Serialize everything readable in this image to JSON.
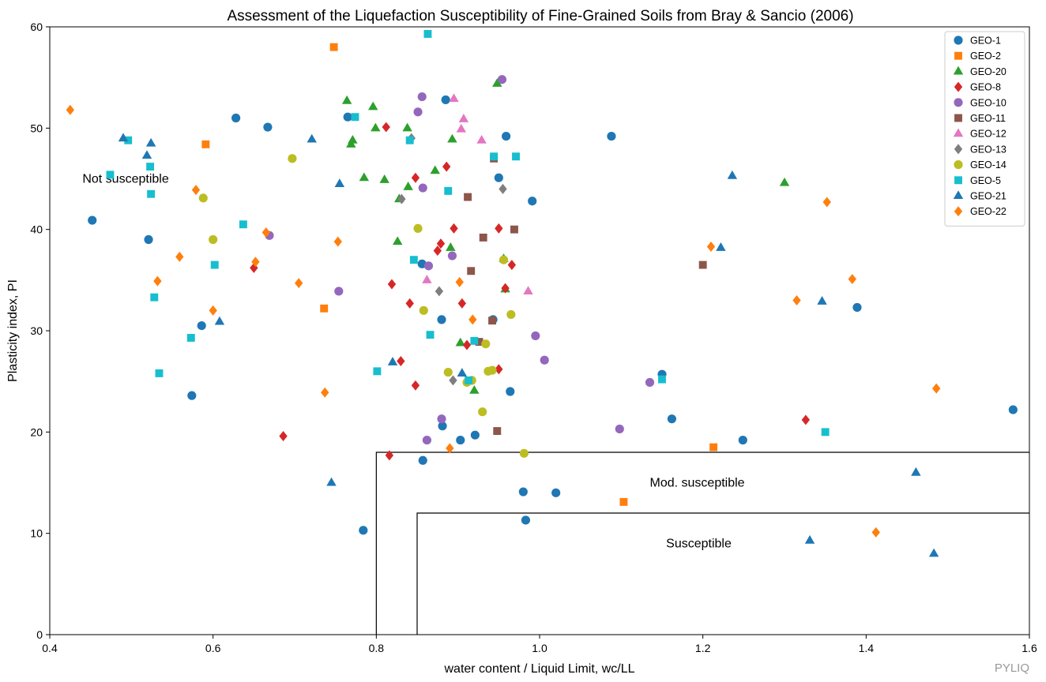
{
  "chart_data": {
    "type": "scatter",
    "title": "Assessment of the Liquefaction Susceptibility of Fine-Grained Soils from Bray & Sancio (2006)",
    "xlabel": "water content / Liquid Limit, wc/LL",
    "ylabel": "Plasticity index, PI",
    "xlim": [
      0.4,
      1.6
    ],
    "ylim": [
      0,
      60
    ],
    "xticks": [
      0.4,
      0.6,
      0.8,
      1.0,
      1.2,
      1.4,
      1.6
    ],
    "xtick_labels": [
      "0.4",
      "0.6",
      "0.8",
      "1.0",
      "1.2",
      "1.4",
      "1.6"
    ],
    "yticks": [
      0,
      10,
      20,
      30,
      40,
      50,
      60
    ],
    "ytick_labels": [
      "0",
      "10",
      "20",
      "30",
      "40",
      "50",
      "60"
    ],
    "grid": false,
    "legend_position": "top-right",
    "watermark": "PYLIQ",
    "zones": [
      {
        "label": "Not susceptible",
        "label_at": [
          0.44,
          45
        ]
      },
      {
        "label": "Mod. susceptible",
        "x_min": 0.8,
        "y_max": 18,
        "label_at": [
          1.135,
          15
        ]
      },
      {
        "label": "Susceptible",
        "x_min": 0.85,
        "y_max": 12,
        "label_at": [
          1.155,
          9
        ]
      }
    ],
    "series": [
      {
        "name": "GEO-1",
        "marker": "circle",
        "color": "#1f77b4",
        "points": [
          [
            0.452,
            40.9
          ],
          [
            0.521,
            39.0
          ],
          [
            0.574,
            23.6
          ],
          [
            0.586,
            30.5
          ],
          [
            0.628,
            51.0
          ],
          [
            0.667,
            50.1
          ],
          [
            0.765,
            51.1
          ],
          [
            0.784,
            10.3
          ],
          [
            0.856,
            36.6
          ],
          [
            0.857,
            17.2
          ],
          [
            0.88,
            31.1
          ],
          [
            0.881,
            20.6
          ],
          [
            0.885,
            52.8
          ],
          [
            0.903,
            19.2
          ],
          [
            0.921,
            19.7
          ],
          [
            0.943,
            31.1
          ],
          [
            0.95,
            45.1
          ],
          [
            0.959,
            49.2
          ],
          [
            0.964,
            24.0
          ],
          [
            0.98,
            14.1
          ],
          [
            0.983,
            11.3
          ],
          [
            0.991,
            42.8
          ],
          [
            1.02,
            14.0
          ],
          [
            1.088,
            49.2
          ],
          [
            1.15,
            25.7
          ],
          [
            1.162,
            21.3
          ],
          [
            1.249,
            19.2
          ],
          [
            1.389,
            32.3
          ],
          [
            1.58,
            22.2
          ]
        ]
      },
      {
        "name": "GEO-2",
        "marker": "square",
        "color": "#ff7f0e",
        "points": [
          [
            0.591,
            48.4
          ],
          [
            0.736,
            32.2
          ],
          [
            0.748,
            58.0
          ],
          [
            1.103,
            13.1
          ],
          [
            1.213,
            18.5
          ]
        ]
      },
      {
        "name": "GEO-20",
        "marker": "triangle",
        "color": "#2ca02c",
        "points": [
          [
            0.764,
            52.7
          ],
          [
            0.769,
            48.4
          ],
          [
            0.771,
            48.8
          ],
          [
            0.785,
            45.1
          ],
          [
            0.796,
            52.1
          ],
          [
            0.799,
            50.0
          ],
          [
            0.81,
            44.9
          ],
          [
            0.826,
            38.8
          ],
          [
            0.828,
            43.0
          ],
          [
            0.838,
            50.0
          ],
          [
            0.839,
            44.2
          ],
          [
            0.872,
            45.8
          ],
          [
            0.891,
            38.2
          ],
          [
            0.893,
            48.9
          ],
          [
            0.903,
            28.8
          ],
          [
            0.92,
            24.1
          ],
          [
            0.948,
            54.4
          ],
          [
            0.956,
            37.1
          ],
          [
            0.958,
            34.1
          ],
          [
            1.3,
            44.6
          ]
        ]
      },
      {
        "name": "GEO-8",
        "marker": "diamond",
        "color": "#d62728",
        "points": [
          [
            0.65,
            36.2
          ],
          [
            0.686,
            19.6
          ],
          [
            0.812,
            50.1
          ],
          [
            0.816,
            17.7
          ],
          [
            0.819,
            34.6
          ],
          [
            0.83,
            27.0
          ],
          [
            0.841,
            32.7
          ],
          [
            0.848,
            45.1
          ],
          [
            0.848,
            24.6
          ],
          [
            0.875,
            37.9
          ],
          [
            0.879,
            38.6
          ],
          [
            0.886,
            46.2
          ],
          [
            0.895,
            40.1
          ],
          [
            0.905,
            32.7
          ],
          [
            0.911,
            28.6
          ],
          [
            0.95,
            40.1
          ],
          [
            0.95,
            26.2
          ],
          [
            0.958,
            34.2
          ],
          [
            0.966,
            36.5
          ],
          [
            1.326,
            21.2
          ]
        ]
      },
      {
        "name": "GEO-10",
        "marker": "circle",
        "color": "#9467bd",
        "points": [
          [
            0.669,
            39.4
          ],
          [
            0.754,
            33.9
          ],
          [
            0.851,
            51.6
          ],
          [
            0.856,
            53.1
          ],
          [
            0.857,
            44.1
          ],
          [
            0.862,
            19.2
          ],
          [
            0.864,
            36.4
          ],
          [
            0.88,
            21.3
          ],
          [
            0.893,
            37.4
          ],
          [
            0.954,
            54.8
          ],
          [
            0.995,
            29.5
          ],
          [
            1.006,
            27.1
          ],
          [
            1.098,
            20.3
          ],
          [
            1.135,
            24.9
          ]
        ]
      },
      {
        "name": "GEO-11",
        "marker": "square",
        "color": "#8c564b",
        "points": [
          [
            0.912,
            43.2
          ],
          [
            0.916,
            35.9
          ],
          [
            0.926,
            28.9
          ],
          [
            0.931,
            39.2
          ],
          [
            0.942,
            31.0
          ],
          [
            0.944,
            47.0
          ],
          [
            0.948,
            20.1
          ],
          [
            0.969,
            40.0
          ],
          [
            1.2,
            36.5
          ]
        ]
      },
      {
        "name": "GEO-12",
        "marker": "triangle",
        "color": "#e377c2",
        "points": [
          [
            0.862,
            35.0
          ],
          [
            0.895,
            52.9
          ],
          [
            0.904,
            49.9
          ],
          [
            0.907,
            50.9
          ],
          [
            0.929,
            48.8
          ],
          [
            0.986,
            33.9
          ]
        ]
      },
      {
        "name": "GEO-13",
        "marker": "diamond",
        "color": "#7f7f7f",
        "points": [
          [
            0.831,
            43.0
          ],
          [
            0.843,
            49.0
          ],
          [
            0.877,
            33.9
          ],
          [
            0.894,
            25.1
          ],
          [
            0.955,
            44.0
          ]
        ]
      },
      {
        "name": "GEO-14",
        "marker": "circle",
        "color": "#bcbd22",
        "points": [
          [
            0.588,
            43.1
          ],
          [
            0.6,
            39.0
          ],
          [
            0.697,
            47.0
          ],
          [
            0.851,
            40.1
          ],
          [
            0.858,
            32.0
          ],
          [
            0.888,
            25.9
          ],
          [
            0.911,
            24.9
          ],
          [
            0.917,
            25.1
          ],
          [
            0.93,
            22.0
          ],
          [
            0.934,
            28.7
          ],
          [
            0.937,
            26.0
          ],
          [
            0.942,
            26.1
          ],
          [
            0.956,
            37.0
          ],
          [
            0.965,
            31.6
          ],
          [
            0.981,
            17.9
          ]
        ]
      },
      {
        "name": "GEO-5",
        "marker": "square",
        "color": "#17becf",
        "points": [
          [
            0.474,
            45.4
          ],
          [
            0.496,
            48.8
          ],
          [
            0.523,
            46.2
          ],
          [
            0.524,
            43.5
          ],
          [
            0.528,
            33.3
          ],
          [
            0.534,
            25.8
          ],
          [
            0.573,
            29.3
          ],
          [
            0.602,
            36.5
          ],
          [
            0.637,
            40.5
          ],
          [
            0.774,
            51.1
          ],
          [
            0.801,
            26.0
          ],
          [
            0.841,
            48.8
          ],
          [
            0.846,
            37.0
          ],
          [
            0.866,
            29.6
          ],
          [
            0.863,
            59.3
          ],
          [
            0.888,
            43.8
          ],
          [
            0.913,
            25.1
          ],
          [
            0.92,
            29.0
          ],
          [
            0.944,
            47.2
          ],
          [
            0.971,
            47.2
          ],
          [
            1.15,
            25.2
          ],
          [
            1.35,
            20.0
          ]
        ]
      },
      {
        "name": "GEO-21",
        "marker": "triangle",
        "color": "#1f77b4",
        "points": [
          [
            0.49,
            49.0
          ],
          [
            0.519,
            47.3
          ],
          [
            0.524,
            48.5
          ],
          [
            0.608,
            30.9
          ],
          [
            0.721,
            48.9
          ],
          [
            0.745,
            15.0
          ],
          [
            0.755,
            44.5
          ],
          [
            0.82,
            26.9
          ],
          [
            0.905,
            25.8
          ],
          [
            1.222,
            38.2
          ],
          [
            1.236,
            45.3
          ],
          [
            1.331,
            9.3
          ],
          [
            1.346,
            32.9
          ],
          [
            1.461,
            16.0
          ],
          [
            1.483,
            8.0
          ]
        ]
      },
      {
        "name": "GEO-22",
        "marker": "diamond",
        "color": "#ff7f0e",
        "points": [
          [
            0.425,
            51.8
          ],
          [
            0.532,
            34.9
          ],
          [
            0.559,
            37.3
          ],
          [
            0.579,
            43.9
          ],
          [
            0.6,
            32.0
          ],
          [
            0.652,
            36.8
          ],
          [
            0.665,
            39.7
          ],
          [
            0.705,
            34.7
          ],
          [
            0.737,
            23.9
          ],
          [
            0.753,
            38.8
          ],
          [
            0.89,
            18.4
          ],
          [
            0.902,
            34.8
          ],
          [
            0.918,
            31.1
          ],
          [
            1.21,
            38.3
          ],
          [
            1.315,
            33.0
          ],
          [
            1.352,
            42.7
          ],
          [
            1.383,
            35.1
          ],
          [
            1.412,
            10.1
          ],
          [
            1.486,
            24.3
          ]
        ]
      }
    ]
  }
}
